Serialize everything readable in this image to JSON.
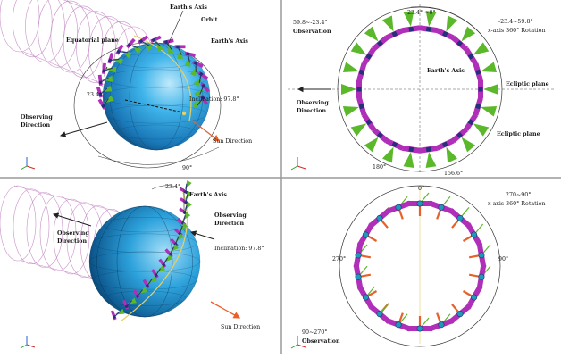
{
  "colors": {
    "sphere_light": "#8fd6f5",
    "sphere_mid": "#2aa6e0",
    "sphere_dark": "#0b4a7a",
    "magenta": "#b02fb8",
    "green": "#5ab82a",
    "orange": "#e8602a",
    "navy": "#23307a",
    "ring_yellow": "#e8d060",
    "cylinder": "#c890c8",
    "divider": "#9a9a9a"
  },
  "panels": {
    "tl": {
      "earths_axis_top": "Earth's Axis",
      "orbit": "Orbit",
      "earths_axis_side": "Earth's Axis",
      "equatorial_plane": "Equatorial plane",
      "angle_left": "23.4°",
      "inclination": "Inclination: 97.8°",
      "observing_direction_l1": "Observing",
      "observing_direction_l2": "Direction",
      "sun_direction": "Sun Direction",
      "angle_bottom": "90°"
    },
    "tr": {
      "obs_angle": "59.8~-23.4°",
      "observation": "Observation",
      "top_angle": "23.4° ~0°",
      "rotation_range": "-23.4~59.8°",
      "rotation_axis": "x-axis 360° Rotation",
      "earths_axis": "Earth's Axis",
      "ecliptic_plane_1": "Ecliptic plane",
      "ecliptic_plane_2": "Ecliptic plane",
      "observing_direction_l1": "Observing",
      "observing_direction_l2": "Direction",
      "angle_bottom_left": "180°",
      "angle_bottom_right": "156.6°"
    },
    "bl": {
      "angle_top": "23.4°",
      "earths_axis": "Earth's Axis",
      "observing_right_l1": "Observing",
      "observing_right_l2": "Direction",
      "observing_left_l1": "Observing",
      "observing_left_l2": "Direction",
      "inclination": "Inclination: 97.8°",
      "sun_direction": "Sun Direction"
    },
    "br": {
      "angle_top": "0°",
      "rotation_range": "270~90°",
      "rotation_axis": "x-axis 360° Rotation",
      "angle_left": "270°",
      "angle_right": "90°",
      "obs_angle": "90~270°",
      "observation": "Observation"
    }
  }
}
